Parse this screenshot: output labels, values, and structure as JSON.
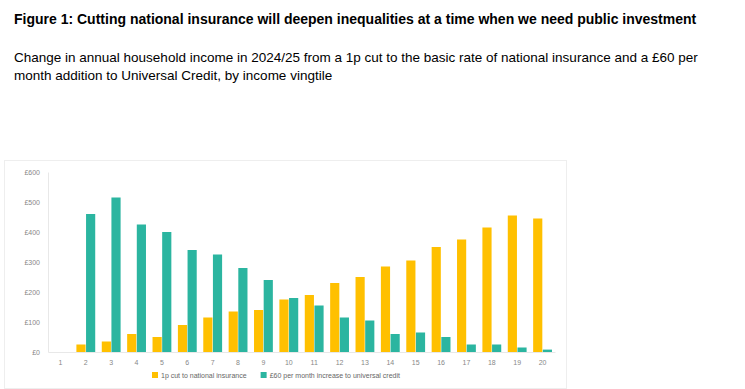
{
  "chart_data": {
    "type": "bar",
    "title": "Figure 1: Cutting national insurance will deepen inequalities at a time when we need public investment",
    "subtitle": "Change in annual household income in 2024/25 from a 1p cut to the basic rate of national insurance and a £60 per month addition to Universal Credit, by income vingtile",
    "categories": [
      "1",
      "2",
      "3",
      "4",
      "5",
      "6",
      "7",
      "8",
      "9",
      "10",
      "11",
      "12",
      "13",
      "14",
      "15",
      "16",
      "17",
      "18",
      "19",
      "20"
    ],
    "series": [
      {
        "name": "1p cut to national insurance",
        "color": "#ffc000",
        "values": [
          null,
          25,
          35,
          60,
          50,
          90,
          115,
          135,
          140,
          175,
          190,
          230,
          250,
          285,
          305,
          350,
          375,
          415,
          455,
          445
        ]
      },
      {
        "name": "£60 per month increase to universal credit",
        "color": "#2bb5a0",
        "values": [
          null,
          460,
          515,
          425,
          400,
          340,
          325,
          280,
          240,
          180,
          155,
          115,
          105,
          60,
          65,
          50,
          25,
          25,
          15,
          8
        ]
      }
    ],
    "ylim": [
      0,
      600
    ],
    "yticks": [
      {
        "value": 0,
        "label": "£0"
      },
      {
        "value": 100,
        "label": "£100"
      },
      {
        "value": 200,
        "label": "£200"
      },
      {
        "value": 300,
        "label": "£300"
      },
      {
        "value": 400,
        "label": "£400"
      },
      {
        "value": 500,
        "label": "£500"
      },
      {
        "value": 600,
        "label": "£600"
      }
    ],
    "grid": false,
    "legend": "bottom"
  }
}
